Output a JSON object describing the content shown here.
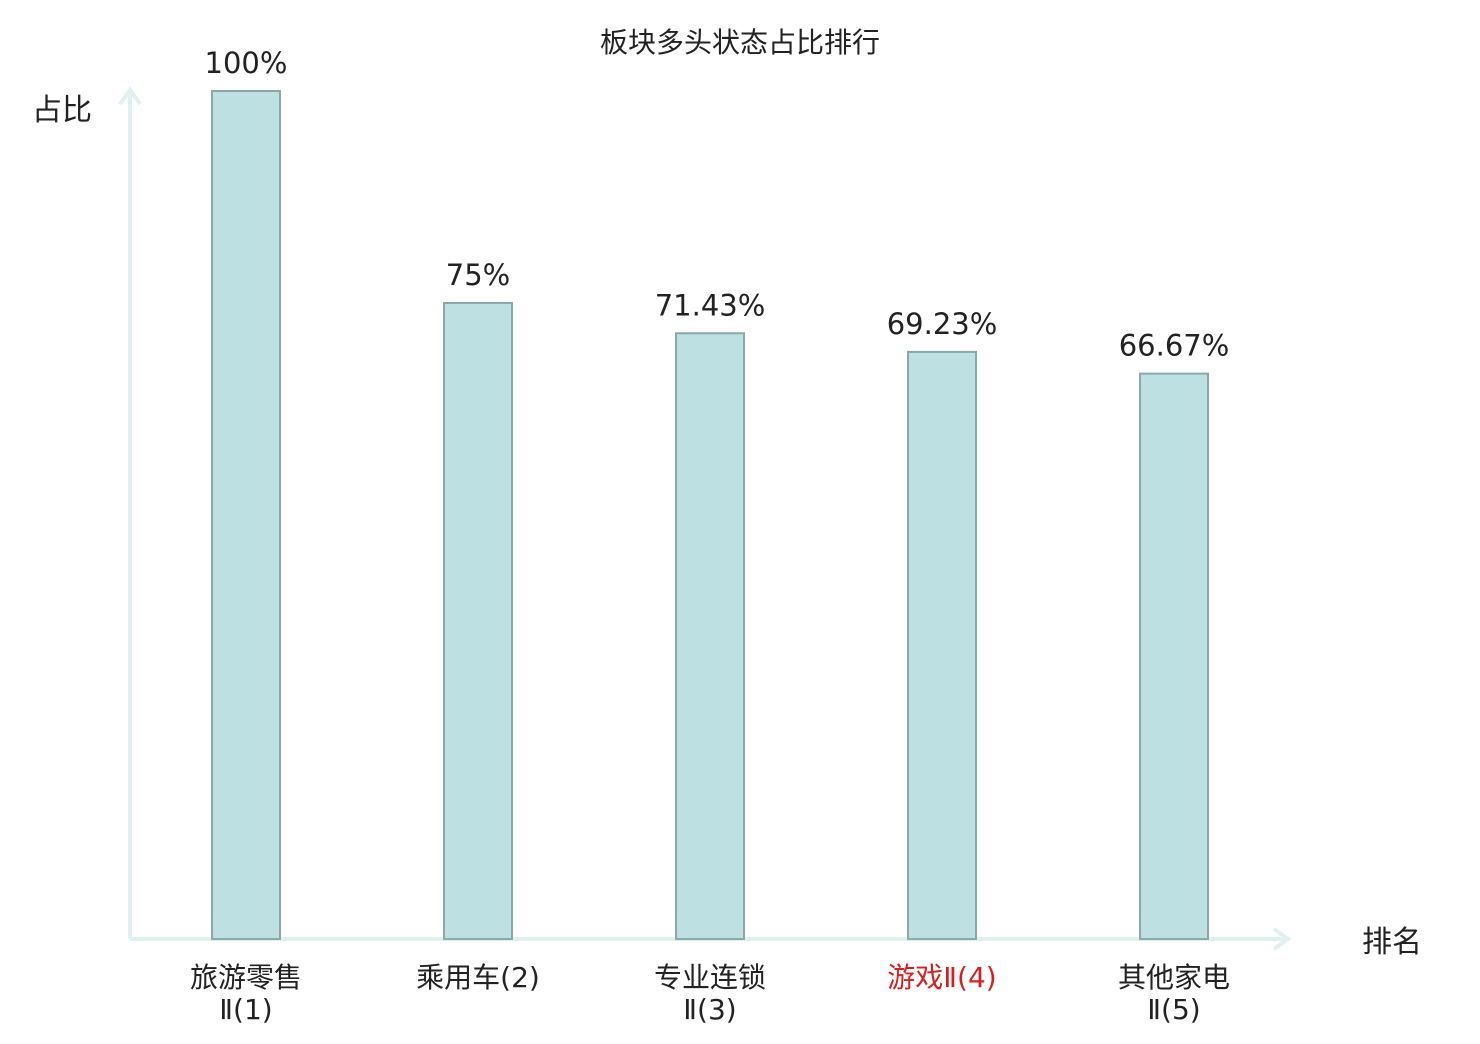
{
  "chart_data": {
    "type": "bar",
    "title": "板块多头状态占比排行",
    "y_label": "占比",
    "x_label": "排名",
    "categories": [
      "旅游零售Ⅱ(1)",
      "乘用车(2)",
      "专业连锁Ⅱ(3)",
      "游戏Ⅱ(4)",
      "其他家电Ⅱ(5)"
    ],
    "label_colors": [
      "#222222",
      "#222222",
      "#222222",
      "#d42020",
      "#222222"
    ],
    "values": [
      100,
      75,
      71.43,
      69.23,
      66.67
    ],
    "value_labels": [
      "100%",
      "75%",
      "71.43%",
      "69.23%",
      "66.67%"
    ],
    "color": "#bde0e2",
    "edge_color": "#8aa8a8",
    "ylim": [
      0,
      100
    ]
  }
}
